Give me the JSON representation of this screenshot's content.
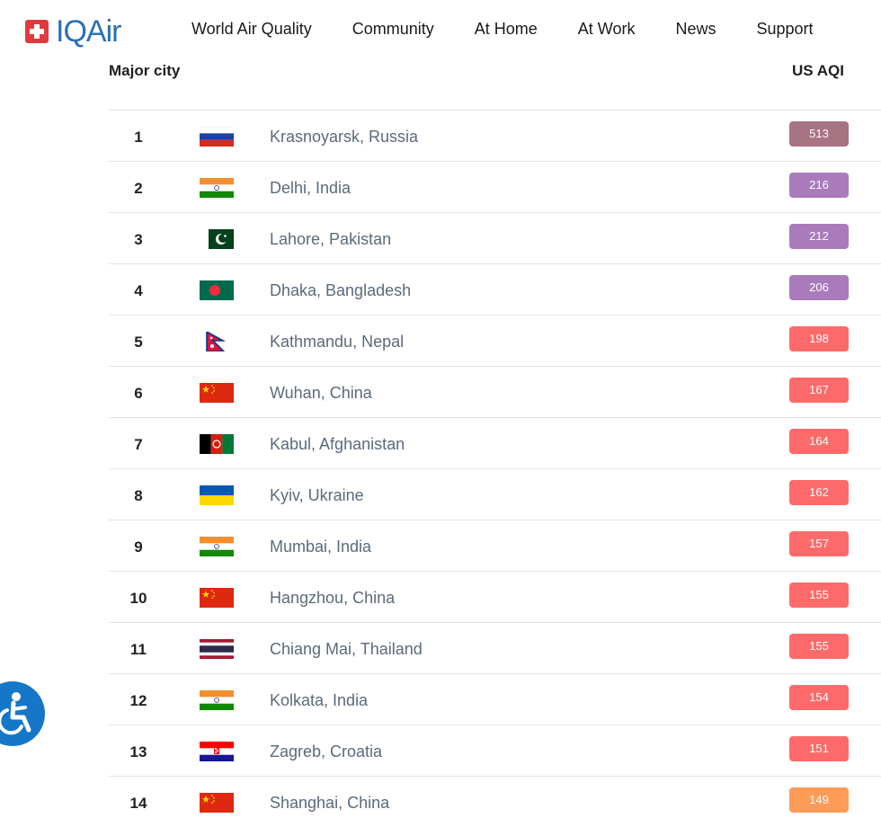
{
  "brand": {
    "logo_text": "IQAir"
  },
  "nav": [
    "World Air Quality",
    "Community",
    "At Home",
    "At Work",
    "News",
    "Support"
  ],
  "table": {
    "col_city": "Major city",
    "col_aqi": "US AQI",
    "rows": [
      {
        "rank": "1",
        "flag": "russia",
        "city": "Krasnoyarsk, Russia",
        "aqi": "513",
        "color": "#a87383"
      },
      {
        "rank": "2",
        "flag": "india",
        "city": "Delhi, India",
        "aqi": "216",
        "color": "#a97abc"
      },
      {
        "rank": "3",
        "flag": "pakistan",
        "city": "Lahore, Pakistan",
        "aqi": "212",
        "color": "#a97abc"
      },
      {
        "rank": "4",
        "flag": "bangladesh",
        "city": "Dhaka, Bangladesh",
        "aqi": "206",
        "color": "#a97abc"
      },
      {
        "rank": "5",
        "flag": "nepal",
        "city": "Kathmandu, Nepal",
        "aqi": "198",
        "color": "#fe6a69"
      },
      {
        "rank": "6",
        "flag": "china",
        "city": "Wuhan, China",
        "aqi": "167",
        "color": "#fe6a69"
      },
      {
        "rank": "7",
        "flag": "afghanistan",
        "city": "Kabul, Afghanistan",
        "aqi": "164",
        "color": "#fe6a69"
      },
      {
        "rank": "8",
        "flag": "ukraine",
        "city": "Kyiv, Ukraine",
        "aqi": "162",
        "color": "#fe6a69"
      },
      {
        "rank": "9",
        "flag": "india",
        "city": "Mumbai, India",
        "aqi": "157",
        "color": "#fe6a69"
      },
      {
        "rank": "10",
        "flag": "china",
        "city": "Hangzhou, China",
        "aqi": "155",
        "color": "#fe6a69"
      },
      {
        "rank": "11",
        "flag": "thailand",
        "city": "Chiang Mai, Thailand",
        "aqi": "155",
        "color": "#fe6a69"
      },
      {
        "rank": "12",
        "flag": "india",
        "city": "Kolkata, India",
        "aqi": "154",
        "color": "#fe6a69"
      },
      {
        "rank": "13",
        "flag": "croatia",
        "city": "Zagreb, Croatia",
        "aqi": "151",
        "color": "#fe6a69"
      },
      {
        "rank": "14",
        "flag": "china",
        "city": "Shanghai, China",
        "aqi": "149",
        "color": "#fe9b57"
      }
    ]
  },
  "accessibility": {
    "icon": "accessibility-icon"
  }
}
